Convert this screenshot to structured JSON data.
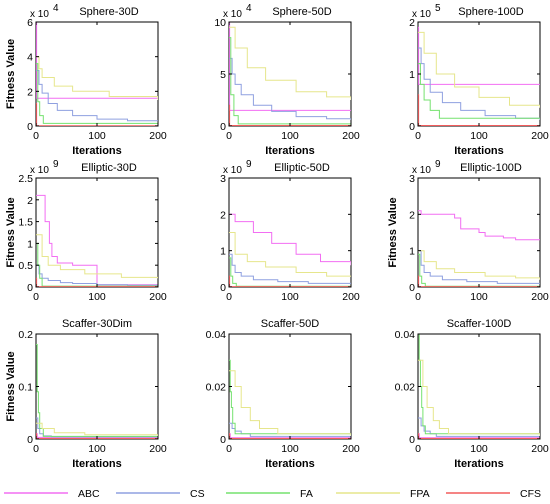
{
  "series_names": [
    "ABC",
    "CS",
    "FA",
    "FPA",
    "CFS"
  ],
  "series_colors": [
    "#f26ef2",
    "#8fa0e0",
    "#75e26f",
    "#e6e68c",
    "#f25c5c"
  ],
  "chart_data": [
    {
      "type": "line",
      "title": "Sphere-30D",
      "multiplier": "x 10",
      "multiplier_exp": "4",
      "xlabel": "Iterations",
      "ylabel": "Fitness Value",
      "xlim": [
        0,
        200
      ],
      "ylim": [
        0,
        6
      ],
      "xticks": [
        "0",
        "100",
        "200"
      ],
      "yticks": [
        "0",
        "2",
        "4",
        "6"
      ],
      "series": [
        {
          "name": "ABC",
          "x": [
            0,
            1,
            2,
            200
          ],
          "y": [
            6,
            1.6,
            1.6,
            1.6
          ]
        },
        {
          "name": "CS",
          "x": [
            0,
            5,
            10,
            20,
            35,
            60,
            100,
            150,
            200
          ],
          "y": [
            3.2,
            2.4,
            1.9,
            1.3,
            0.9,
            0.6,
            0.4,
            0.3,
            0.3
          ]
        },
        {
          "name": "FA",
          "x": [
            0,
            3,
            6,
            12,
            200
          ],
          "y": [
            3.6,
            1.4,
            0.6,
            0.15,
            0.15
          ]
        },
        {
          "name": "FPA",
          "x": [
            0,
            5,
            10,
            30,
            60,
            120,
            200
          ],
          "y": [
            4,
            3.3,
            2.8,
            2.3,
            2.0,
            1.7,
            1.5
          ]
        },
        {
          "name": "CFS",
          "x": [
            0,
            1,
            200
          ],
          "y": [
            1.3,
            0.02,
            0.02
          ]
        }
      ]
    },
    {
      "type": "line",
      "title": "Sphere-50D",
      "multiplier": "x 10",
      "multiplier_exp": "4",
      "xlabel": "Iterations",
      "ylabel": "",
      "xlim": [
        0,
        200
      ],
      "ylim": [
        0,
        10
      ],
      "xticks": [
        "0",
        "100",
        "200"
      ],
      "yticks": [
        "0",
        "5",
        "10"
      ],
      "series": [
        {
          "name": "ABC",
          "x": [
            0,
            1,
            2,
            200
          ],
          "y": [
            10,
            1.5,
            1.5,
            1.5
          ]
        },
        {
          "name": "CS",
          "x": [
            0,
            5,
            10,
            20,
            40,
            70,
            110,
            160,
            200
          ],
          "y": [
            6.5,
            5,
            4,
            3,
            2,
            1.4,
            0.9,
            0.7,
            0.6
          ]
        },
        {
          "name": "FA",
          "x": [
            0,
            3,
            8,
            15,
            200
          ],
          "y": [
            8.5,
            3,
            1,
            0.2,
            0.2
          ]
        },
        {
          "name": "FPA",
          "x": [
            0,
            10,
            30,
            60,
            110,
            160,
            200
          ],
          "y": [
            9.5,
            7.5,
            5.6,
            4.4,
            3.3,
            2.8,
            2.5
          ]
        },
        {
          "name": "CFS",
          "x": [
            0,
            1,
            200
          ],
          "y": [
            2,
            0.05,
            0.05
          ]
        }
      ]
    },
    {
      "type": "line",
      "title": "Sphere-100D",
      "multiplier": "x 10",
      "multiplier_exp": "5",
      "xlabel": "Iterations",
      "ylabel": "",
      "xlim": [
        0,
        200
      ],
      "ylim": [
        0,
        2
      ],
      "xticks": [
        "0",
        "100",
        "200"
      ],
      "yticks": [
        "0",
        "1",
        "2"
      ],
      "series": [
        {
          "name": "ABC",
          "x": [
            0,
            1,
            2,
            200
          ],
          "y": [
            1.9,
            0.8,
            0.8,
            0.8
          ]
        },
        {
          "name": "CS",
          "x": [
            0,
            5,
            10,
            20,
            40,
            70,
            110,
            160,
            200
          ],
          "y": [
            1.5,
            1.2,
            0.9,
            0.65,
            0.45,
            0.3,
            0.2,
            0.15,
            0.12
          ]
        },
        {
          "name": "FA",
          "x": [
            0,
            4,
            10,
            20,
            35,
            200
          ],
          "y": [
            1.2,
            0.8,
            0.5,
            0.3,
            0.15,
            0.15
          ]
        },
        {
          "name": "FPA",
          "x": [
            0,
            10,
            30,
            60,
            100,
            150,
            200
          ],
          "y": [
            1.8,
            1.4,
            1.0,
            0.75,
            0.55,
            0.4,
            0.35
          ]
        },
        {
          "name": "CFS",
          "x": [
            0,
            1,
            200
          ],
          "y": [
            0.6,
            0.01,
            0.01
          ]
        }
      ]
    },
    {
      "type": "line",
      "title": "Elliptic-30D",
      "multiplier": "x 10",
      "multiplier_exp": "9",
      "xlabel": "",
      "ylabel": "Fitness Value",
      "xlim": [
        0,
        200
      ],
      "ylim": [
        0,
        2.5
      ],
      "xticks": [
        "0",
        "100",
        "200"
      ],
      "yticks": [
        "0",
        "0.5",
        "1",
        "1.5",
        "2",
        "2.5"
      ],
      "series": [
        {
          "name": "ABC",
          "x": [
            0,
            10,
            15,
            22,
            26,
            35,
            60,
            95,
            100,
            200
          ],
          "y": [
            2.1,
            2.1,
            1.5,
            1.0,
            0.7,
            0.55,
            0.5,
            0.5,
            0.05,
            0.05
          ]
        },
        {
          "name": "CS",
          "x": [
            0,
            5,
            10,
            20,
            40,
            60,
            100,
            150,
            200
          ],
          "y": [
            0.5,
            0.3,
            0.2,
            0.15,
            0.1,
            0.08,
            0.05,
            0.04,
            0.04
          ]
        },
        {
          "name": "FA",
          "x": [
            0,
            3,
            6,
            10,
            200
          ],
          "y": [
            1.0,
            0.5,
            0.2,
            0.02,
            0.02
          ]
        },
        {
          "name": "FPA",
          "x": [
            0,
            10,
            20,
            40,
            80,
            140,
            200
          ],
          "y": [
            1.2,
            0.7,
            0.5,
            0.4,
            0.3,
            0.22,
            0.2
          ]
        },
        {
          "name": "CFS",
          "x": [
            0,
            1,
            200
          ],
          "y": [
            0.2,
            0.01,
            0.01
          ]
        }
      ]
    },
    {
      "type": "line",
      "title": "Elliptic-50D",
      "multiplier": "x 10",
      "multiplier_exp": "9",
      "xlabel": "",
      "ylabel": "",
      "xlim": [
        0,
        200
      ],
      "ylim": [
        0,
        3
      ],
      "xticks": [
        "0",
        "100",
        "200"
      ],
      "yticks": [
        "0",
        "1",
        "2",
        "3"
      ],
      "series": [
        {
          "name": "ABC",
          "x": [
            0,
            10,
            40,
            70,
            110,
            150,
            200
          ],
          "y": [
            2.0,
            1.8,
            1.5,
            1.2,
            0.9,
            0.7,
            0.6
          ]
        },
        {
          "name": "CS",
          "x": [
            0,
            5,
            10,
            20,
            40,
            80,
            130,
            200
          ],
          "y": [
            0.9,
            0.6,
            0.4,
            0.3,
            0.2,
            0.15,
            0.1,
            0.1
          ]
        },
        {
          "name": "FA",
          "x": [
            0,
            3,
            6,
            12,
            200
          ],
          "y": [
            0.8,
            0.3,
            0.1,
            0.02,
            0.02
          ]
        },
        {
          "name": "FPA",
          "x": [
            0,
            10,
            30,
            60,
            110,
            160,
            200
          ],
          "y": [
            1.5,
            0.9,
            0.7,
            0.55,
            0.4,
            0.3,
            0.28
          ]
        },
        {
          "name": "CFS",
          "x": [
            0,
            1,
            200
          ],
          "y": [
            0.3,
            0.01,
            0.01
          ]
        }
      ]
    },
    {
      "type": "line",
      "title": "Elliptic-100D",
      "multiplier": "x 10",
      "multiplier_exp": "9",
      "xlabel": "",
      "ylabel": "Fitness Value",
      "xlim": [
        0,
        200
      ],
      "ylim": [
        0,
        3
      ],
      "xticks": [
        "0",
        "100",
        "200"
      ],
      "yticks": [
        "0",
        "1",
        "2",
        "3"
      ],
      "series": [
        {
          "name": "ABC",
          "x": [
            0,
            5,
            60,
            70,
            100,
            110,
            140,
            160,
            200
          ],
          "y": [
            2.1,
            2.0,
            1.9,
            1.6,
            1.5,
            1.4,
            1.35,
            1.3,
            1.3
          ]
        },
        {
          "name": "CS",
          "x": [
            0,
            5,
            10,
            20,
            40,
            80,
            130,
            200
          ],
          "y": [
            1.0,
            0.6,
            0.4,
            0.3,
            0.2,
            0.15,
            0.1,
            0.1
          ]
        },
        {
          "name": "FA",
          "x": [
            0,
            3,
            6,
            12,
            200
          ],
          "y": [
            0.9,
            0.3,
            0.1,
            0.02,
            0.02
          ]
        },
        {
          "name": "FPA",
          "x": [
            0,
            10,
            30,
            60,
            110,
            160,
            200
          ],
          "y": [
            1.0,
            0.7,
            0.5,
            0.4,
            0.3,
            0.25,
            0.2
          ]
        },
        {
          "name": "CFS",
          "x": [
            0,
            1,
            200
          ],
          "y": [
            0.3,
            0.01,
            0.01
          ]
        }
      ]
    },
    {
      "type": "line",
      "title": "Scaffer-30Dim",
      "multiplier": "",
      "multiplier_exp": "",
      "xlabel": "Iterations",
      "ylabel": "Fitness Value",
      "xlim": [
        0,
        200
      ],
      "ylim": [
        0,
        0.2
      ],
      "xticks": [
        "0",
        "100",
        "200"
      ],
      "yticks": [
        "0",
        "0.1",
        "0.2"
      ],
      "series": [
        {
          "name": "ABC",
          "x": [
            0,
            2,
            200
          ],
          "y": [
            0.01,
            0.003,
            0.003
          ]
        },
        {
          "name": "CS",
          "x": [
            0,
            3,
            6,
            12,
            25,
            200
          ],
          "y": [
            0.04,
            0.02,
            0.01,
            0.006,
            0.004,
            0.004
          ]
        },
        {
          "name": "FA",
          "x": [
            0,
            2,
            4,
            6,
            12,
            200
          ],
          "y": [
            0.18,
            0.09,
            0.05,
            0.02,
            0.005,
            0.005
          ]
        },
        {
          "name": "FPA",
          "x": [
            0,
            10,
            30,
            80,
            200
          ],
          "y": [
            0.03,
            0.02,
            0.012,
            0.008,
            0.006
          ]
        },
        {
          "name": "CFS",
          "x": [
            0,
            1,
            200
          ],
          "y": [
            0.01,
            0.001,
            0.001
          ]
        }
      ]
    },
    {
      "type": "line",
      "title": "Scaffer-50D",
      "multiplier": "",
      "multiplier_exp": "",
      "xlabel": "Iterations",
      "ylabel": "",
      "xlim": [
        0,
        200
      ],
      "ylim": [
        0,
        0.04
      ],
      "xticks": [
        "0",
        "100",
        "200"
      ],
      "yticks": [
        "0",
        "0.02",
        "0.04"
      ],
      "series": [
        {
          "name": "ABC",
          "x": [
            0,
            2,
            200
          ],
          "y": [
            0.002,
            0.0005,
            0.0005
          ]
        },
        {
          "name": "CS",
          "x": [
            0,
            5,
            10,
            20,
            35,
            200
          ],
          "y": [
            0.006,
            0.004,
            0.003,
            0.002,
            0.001,
            0.001
          ]
        },
        {
          "name": "FA",
          "x": [
            0,
            2,
            4,
            6,
            10,
            200
          ],
          "y": [
            0.03,
            0.018,
            0.012,
            0.006,
            0.002,
            0.002
          ]
        },
        {
          "name": "FPA",
          "x": [
            0,
            10,
            20,
            35,
            50,
            80,
            200
          ],
          "y": [
            0.026,
            0.02,
            0.012,
            0.007,
            0.004,
            0.002,
            0.001
          ]
        },
        {
          "name": "CFS",
          "x": [
            0,
            1,
            200
          ],
          "y": [
            0.002,
            0.0002,
            0.0002
          ]
        }
      ]
    },
    {
      "type": "line",
      "title": "Scaffer-100D",
      "multiplier": "",
      "multiplier_exp": "",
      "xlabel": "Iterations",
      "ylabel": "",
      "xlim": [
        0,
        200
      ],
      "ylim": [
        0,
        0.04
      ],
      "xticks": [
        "0",
        "100",
        "200"
      ],
      "yticks": [
        "0",
        "0.02",
        "0.04"
      ],
      "series": [
        {
          "name": "ABC",
          "x": [
            0,
            2,
            200
          ],
          "y": [
            0.002,
            0.0005,
            0.0005
          ]
        },
        {
          "name": "CS",
          "x": [
            0,
            5,
            10,
            20,
            30,
            200
          ],
          "y": [
            0.008,
            0.005,
            0.003,
            0.002,
            0.001,
            0.001
          ]
        },
        {
          "name": "FA",
          "x": [
            0,
            2,
            4,
            6,
            8,
            12,
            200
          ],
          "y": [
            0.04,
            0.03,
            0.02,
            0.012,
            0.005,
            0.002,
            0.002
          ]
        },
        {
          "name": "FPA",
          "x": [
            0,
            8,
            15,
            25,
            35,
            50,
            200
          ],
          "y": [
            0.03,
            0.02,
            0.012,
            0.007,
            0.004,
            0.002,
            0.001
          ]
        },
        {
          "name": "CFS",
          "x": [
            0,
            1,
            200
          ],
          "y": [
            0.002,
            0.0002,
            0.0002
          ]
        }
      ]
    }
  ]
}
